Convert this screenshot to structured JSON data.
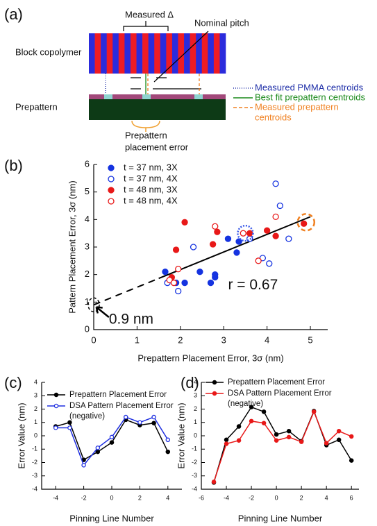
{
  "diagram": {
    "label": "(a)",
    "block_copolymer": "Block copolymer",
    "prepattern": "Prepattern",
    "measured_delta": "Measured Δ",
    "nominal_pitch": "Nominal pitch",
    "placement_error": [
      "Prepattern",
      "placement error"
    ],
    "legend": [
      {
        "text": [
          "Measured PMMA centroids"
        ],
        "color": "#1f2fa8"
      },
      {
        "text": [
          "Best fit prepattern centroids"
        ],
        "color": "#1a8a1a"
      },
      {
        "text": [
          "Measured prepattern",
          "centroids"
        ],
        "color": "#f08020"
      }
    ]
  },
  "chart_data": [
    {
      "type": "scatter",
      "label": "(b)",
      "xlabel": "Prepattern Placement Error, 3σ (nm)",
      "ylabel": "Pattern Placement Error, 3σ (nm)",
      "xlim": [
        0,
        5.4
      ],
      "ylim": [
        0,
        6
      ],
      "xticks": [
        0,
        1,
        2,
        3,
        4,
        5
      ],
      "yticks": [
        0,
        1,
        2,
        3,
        4,
        5,
        6
      ],
      "series": [
        {
          "name": "t = 37 nm, 3X",
          "color": "#1533e0",
          "marker": "filled",
          "x": [
            1.65,
            1.9,
            2.1,
            2.45,
            2.7,
            2.8,
            2.8,
            3.1,
            3.3,
            3.35
          ],
          "values": [
            2.1,
            1.7,
            1.7,
            2.1,
            1.7,
            1.9,
            2.0,
            3.3,
            2.8,
            3.2
          ]
        },
        {
          "name": "t = 37 nm, 4X",
          "color": "#1533e0",
          "marker": "open",
          "x": [
            1.7,
            1.95,
            2.3,
            3.6,
            3.9,
            4.05,
            4.2,
            4.3,
            4.5
          ],
          "values": [
            1.7,
            1.4,
            3.0,
            3.3,
            2.6,
            2.4,
            5.3,
            4.5,
            3.3
          ]
        },
        {
          "name": "t = 48 nm, 3X",
          "color": "#e81818",
          "marker": "filled",
          "x": [
            1.8,
            1.9,
            2.1,
            2.75,
            2.85,
            3.6,
            4.0,
            4.2,
            4.85
          ],
          "values": [
            1.9,
            2.9,
            3.9,
            3.1,
            3.55,
            3.5,
            3.6,
            3.4,
            3.85
          ]
        },
        {
          "name": "t = 48 nm, 4X",
          "color": "#e81818",
          "marker": "open",
          "x": [
            1.75,
            1.85,
            1.95,
            2.8,
            3.45,
            3.8,
            4.2
          ],
          "values": [
            1.8,
            1.7,
            2.2,
            3.75,
            3.5,
            2.5,
            4.1
          ]
        }
      ],
      "fit": {
        "x": [
          0,
          1.5,
          5
        ],
        "values": [
          0.9,
          1.86,
          4.1
        ]
      },
      "annotations": {
        "r": "r = 0.67",
        "intercept": "0.9 nm"
      }
    },
    {
      "type": "line",
      "label": "(c)",
      "xlabel": "Pinning Line Number",
      "ylabel": "Error Value (nm)",
      "xlim": [
        -5,
        5
      ],
      "ylim": [
        -4,
        4
      ],
      "xticks": [
        -4,
        -2,
        0,
        2,
        4
      ],
      "yticks": [
        -4,
        -3,
        -2,
        -1,
        0,
        1,
        2,
        3,
        4
      ],
      "x": [
        -4,
        -3,
        -2,
        -1,
        0,
        1,
        2,
        3,
        4
      ],
      "series": [
        {
          "name": "Prepattern Placement Error",
          "color": "#000000",
          "marker": "filled",
          "values": [
            0.7,
            1.0,
            -1.8,
            -1.2,
            -0.5,
            1.2,
            0.8,
            0.95,
            -1.2
          ]
        },
        {
          "name": [
            "DSA Pattern Placement Error",
            "(negative)"
          ],
          "color": "#1f2fe0",
          "marker": "open",
          "values": [
            0.6,
            0.6,
            -2.2,
            -0.9,
            -0.1,
            1.4,
            1.0,
            1.4,
            -0.3
          ]
        }
      ]
    },
    {
      "type": "line",
      "label": "(d)",
      "xlabel": "Pinning Line Number",
      "ylabel": "Error Value (nm)",
      "xlim": [
        -6,
        6.6
      ],
      "ylim": [
        -4,
        4
      ],
      "xticks": [
        -6,
        -4,
        -2,
        0,
        2,
        4,
        6
      ],
      "yticks": [
        -4,
        -3,
        -2,
        -1,
        0,
        1,
        2,
        3,
        4
      ],
      "x": [
        -5,
        -4,
        -3,
        -2,
        -1,
        0,
        1,
        2,
        3,
        4,
        5,
        6
      ],
      "series": [
        {
          "name": "Prepattern Placement Error",
          "color": "#000000",
          "marker": "filled",
          "values": [
            -3.5,
            -0.3,
            0.7,
            2.15,
            1.8,
            0.1,
            0.35,
            -0.4,
            1.85,
            -0.7,
            -0.3,
            -1.85
          ]
        },
        {
          "name": [
            "DSA Pattern Placement Error",
            "(negative)"
          ],
          "color": "#e81818",
          "marker": "filled",
          "values": [
            -3.45,
            -0.6,
            -0.35,
            1.1,
            0.95,
            -0.35,
            -0.1,
            -0.45,
            1.8,
            -0.55,
            0.35,
            -0.05
          ]
        }
      ]
    }
  ]
}
